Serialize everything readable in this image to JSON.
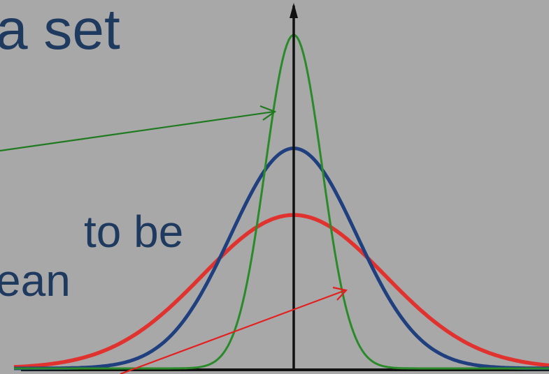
{
  "slide": {
    "heading_fragment": "a set",
    "body_fragment_1": "to be",
    "body_fragment_2": "ean"
  },
  "colors": {
    "background": "#a8a8a8",
    "text": "#1f3a5f",
    "narrow_curve": "#2a8a2a",
    "medium_curve": "#1f3f7f",
    "wide_curve": "#e0332f",
    "axis": "#111111"
  },
  "curves": [
    {
      "key": "narrow",
      "color_key": "narrow_curve",
      "relative_peak": 1.0,
      "relative_spread": 0.45
    },
    {
      "key": "medium",
      "color_key": "medium_curve",
      "relative_peak": 0.66,
      "relative_spread": 1.0
    },
    {
      "key": "wide",
      "color_key": "wide_curve",
      "relative_peak": 0.46,
      "relative_spread": 1.45
    }
  ]
}
